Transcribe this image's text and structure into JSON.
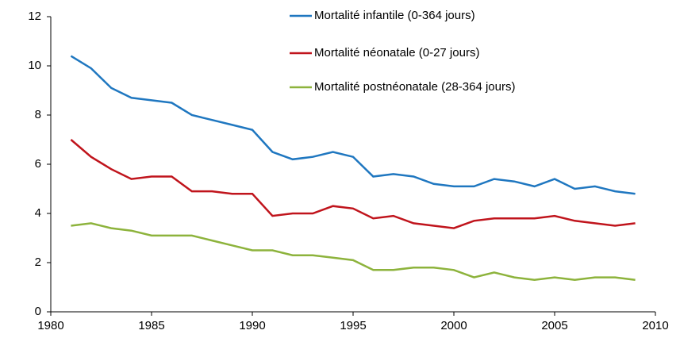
{
  "chart_data": {
    "type": "line",
    "x": [
      1981,
      1982,
      1983,
      1984,
      1985,
      1986,
      1987,
      1988,
      1989,
      1990,
      1991,
      1992,
      1993,
      1994,
      1995,
      1996,
      1997,
      1998,
      1999,
      2000,
      2001,
      2002,
      2003,
      2004,
      2005,
      2006,
      2007,
      2008,
      2009
    ],
    "series": [
      {
        "name": "Mortalité infantile (0-364 jours)",
        "color": "#1f77c0",
        "values": [
          10.4,
          9.9,
          9.1,
          8.7,
          8.6,
          8.5,
          8.0,
          7.8,
          7.6,
          7.4,
          6.5,
          6.2,
          6.3,
          6.5,
          6.3,
          5.5,
          5.6,
          5.5,
          5.2,
          5.1,
          5.1,
          5.4,
          5.3,
          5.1,
          5.4,
          5.0,
          5.1,
          4.9,
          4.8
        ]
      },
      {
        "name": "Mortalité néonatale (0-27 jours)",
        "color": "#c0141c",
        "values": [
          7.0,
          6.3,
          5.8,
          5.4,
          5.5,
          5.5,
          4.9,
          4.9,
          4.8,
          4.8,
          3.9,
          4.0,
          4.0,
          4.3,
          4.2,
          3.8,
          3.9,
          3.6,
          3.5,
          3.4,
          3.7,
          3.8,
          3.8,
          3.8,
          3.9,
          3.7,
          3.6,
          3.5,
          3.6
        ]
      },
      {
        "name": "Mortalité postnéonatale (28-364 jours)",
        "color": "#8db33c",
        "values": [
          3.5,
          3.6,
          3.4,
          3.3,
          3.1,
          3.1,
          3.1,
          2.9,
          2.7,
          2.5,
          2.5,
          2.3,
          2.3,
          2.2,
          2.1,
          1.7,
          1.7,
          1.8,
          1.8,
          1.7,
          1.4,
          1.6,
          1.4,
          1.3,
          1.4,
          1.3,
          1.4,
          1.4,
          1.3
        ]
      }
    ],
    "xlim": [
      1980,
      2010
    ],
    "xticks": [
      1980,
      1985,
      1990,
      1995,
      2000,
      2005,
      2010
    ],
    "ylim": [
      0,
      12
    ],
    "yticks": [
      0,
      2,
      4,
      6,
      8,
      10,
      12
    ],
    "grid": false,
    "legend": "top"
  }
}
